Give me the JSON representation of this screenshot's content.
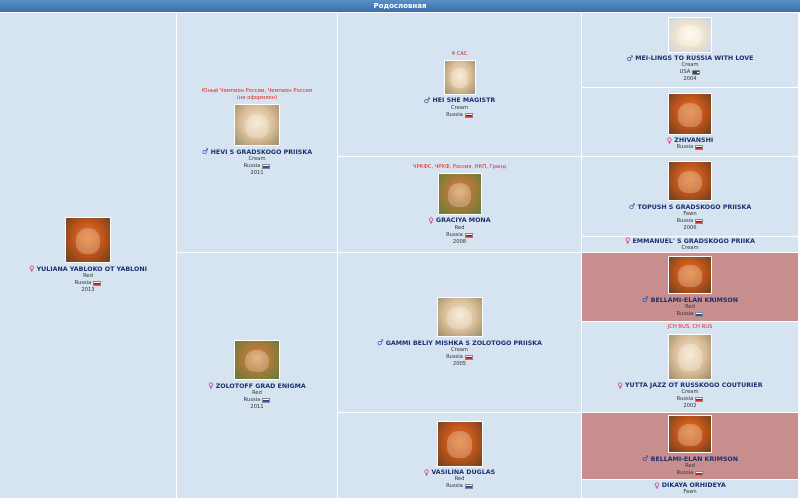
{
  "header": {
    "title": "Родословная"
  },
  "dogs": {
    "d1": {
      "sex": "♀",
      "name": "YULIANA YABLOKO OT YABLONI",
      "color": "Red",
      "country": "Russia",
      "year": "2013",
      "photo": "red"
    },
    "d2": {
      "title": "Юный Чемпион России, Чемпион России (не оформлен)",
      "sex": "♂",
      "name": "HEVI S GRADSKOGO PRIISKA",
      "color": "Cream",
      "country": "Russia",
      "year": "2011",
      "photo": "cream"
    },
    "d3": {
      "sex": "♀",
      "name": "ZOLOTOFF GRAD ENIGMA",
      "color": "Red",
      "country": "Russia",
      "year": "2011",
      "photo": "green"
    },
    "d4": {
      "title": "4 CAC",
      "sex": "♂",
      "name": "HEI SHE MAGISTR",
      "color": "Cream",
      "country": "Russia",
      "year": "",
      "photo": "cream"
    },
    "d5": {
      "title": "ЧРКФС, ЧРКФ, Россия, НКП, Гранд",
      "sex": "♀",
      "name": "GRACIYA MONA",
      "color": "Red",
      "country": "Russia",
      "year": "2008",
      "photo": "green"
    },
    "d6": {
      "sex": "♂",
      "name": "GAMMI BELIY MISHKA S ZOLOTOGO PRIISKA",
      "color": "Cream",
      "country": "Russia",
      "year": "2005",
      "photo": "cream"
    },
    "d7": {
      "sex": "♀",
      "name": "VASILINA DUGLAS",
      "color": "Red",
      "country": "Russia",
      "year": "",
      "photo": "red"
    },
    "d8": {
      "sex": "♂",
      "name": "MEI-LINGS TO RUSSIA WITH LOVE",
      "color": "Cream",
      "country": "USA",
      "year": "2004",
      "photo": "white"
    },
    "d9": {
      "sex": "♀",
      "name": "ZHIVANSHI",
      "color": "",
      "country": "Russia",
      "year": "",
      "photo": "red"
    },
    "d10": {
      "sex": "♂",
      "name": "TOPUSH S GRADSKOGO PRIISKA",
      "color": "Fawn",
      "country": "Russia",
      "year": "2006",
      "photo": "red"
    },
    "d11": {
      "sex": "♀",
      "name": "EMMANUEL' S GRADSKOGO PRIIKA",
      "color": "Cream",
      "country": "",
      "year": "",
      "photo": ""
    },
    "d12": {
      "sex": "♂",
      "name": "BELLAMI-ELAN KRIMSON",
      "color": "Red",
      "country": "Russia",
      "year": "",
      "photo": "red"
    },
    "d13": {
      "title": "JCH RUS, CH RUS",
      "sex": "♀",
      "name": "YUTTA JAZZ OT RUSSKOGO COUTURIER",
      "color": "Cream",
      "country": "Russia",
      "year": "2002",
      "photo": "cream"
    },
    "d14": {
      "sex": "♂",
      "name": "BELLAMI-ELAN KRIMSON",
      "color": "Red",
      "country": "Russia",
      "year": "",
      "photo": "red"
    },
    "d15": {
      "sex": "♀",
      "name": "DIKAYA ORHIDEYA",
      "color": "Fawn",
      "country": "",
      "year": "",
      "photo": ""
    }
  }
}
